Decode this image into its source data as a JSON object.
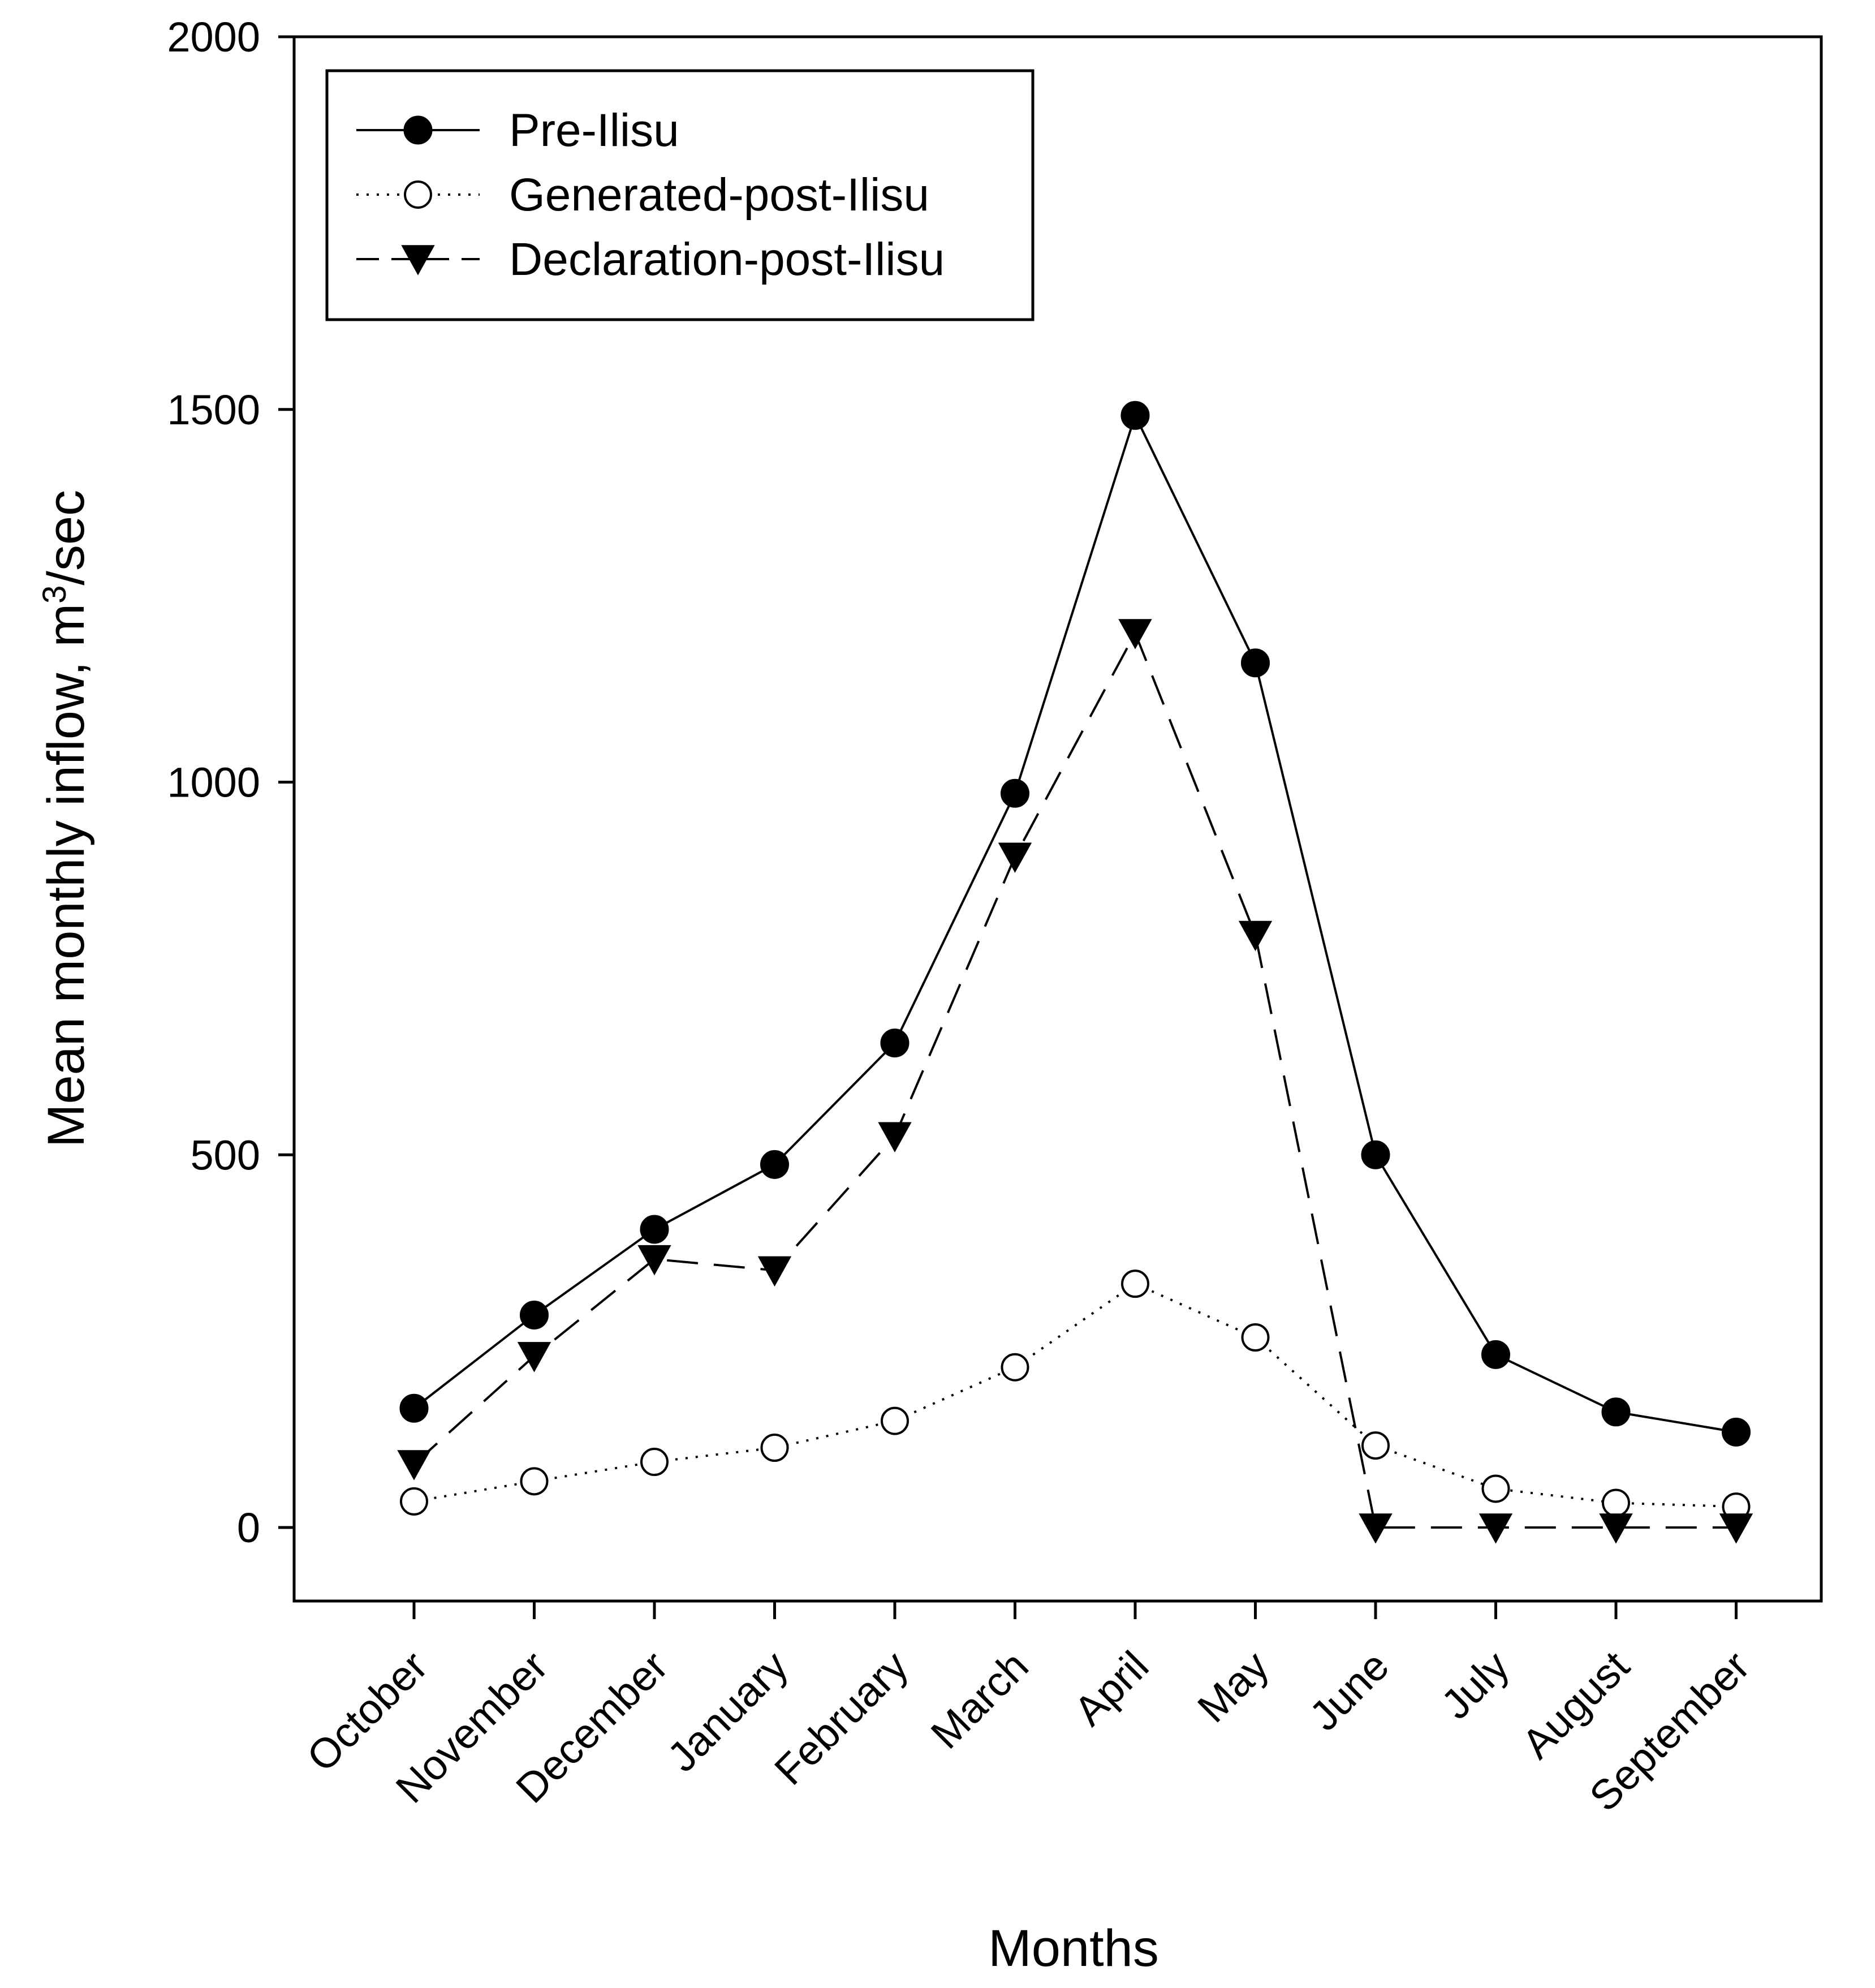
{
  "chart_data": {
    "type": "line",
    "title": "",
    "xlabel": "Months",
    "ylabel": "Mean monthly inflow, m",
    "ylabel_sup": "3",
    "ylabel_suffix": "/sec",
    "categories": [
      "October",
      "November",
      "December",
      "January",
      "February",
      "March",
      "April",
      "May",
      "June",
      "July",
      "August",
      "September"
    ],
    "ylim": [
      -100,
      2000
    ],
    "yticks": [
      0,
      500,
      1000,
      1500,
      2000
    ],
    "ytick_labels": [
      "0",
      "500",
      "1000",
      "1500",
      "2000"
    ],
    "grid": false,
    "legend_position": "top-left",
    "series": [
      {
        "name": "Pre-Ilisu",
        "line_style": "solid",
        "marker": "filled-circle",
        "values": [
          160,
          285,
          400,
          487,
          650,
          985,
          1492,
          1160,
          500,
          232,
          155,
          128
        ]
      },
      {
        "name": "Generated-post-Ilisu",
        "line_style": "dotted",
        "marker": "open-circle",
        "values": [
          35,
          62,
          88,
          107,
          143,
          215,
          327,
          255,
          110,
          52,
          33,
          28
        ]
      },
      {
        "name": "Declaration-post-Ilisu",
        "line_style": "dashed",
        "marker": "filled-triangle-down",
        "values": [
          85,
          230,
          360,
          345,
          525,
          900,
          1200,
          795,
          0,
          0,
          0,
          0
        ]
      }
    ]
  }
}
